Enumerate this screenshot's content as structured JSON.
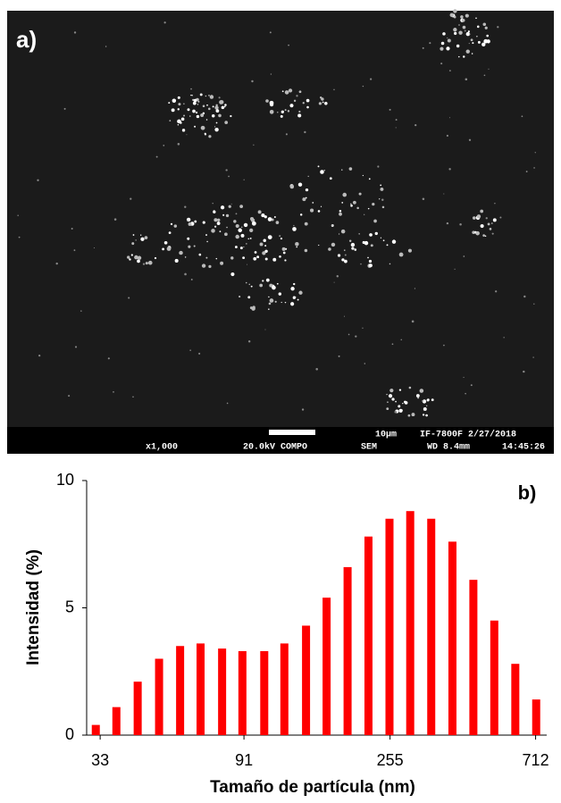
{
  "image": {
    "label": "a)",
    "scale_bar": "10µm",
    "instrument": "IF-7800F 2/27/2018",
    "magnification": "x1,000",
    "voltage": "20.0kV COMPO",
    "mode": "SEM",
    "working_distance": "WD 8.4mm",
    "time": "14:45:26"
  },
  "chart_data": {
    "type": "bar",
    "label": "b)",
    "xlabel": "Tamaño de partícula (nm)",
    "ylabel": "Intensidad (%)",
    "x": [
      32,
      37,
      43,
      50,
      58,
      67,
      78,
      90,
      105,
      121,
      141,
      163,
      189,
      219,
      254,
      294,
      341,
      396,
      459,
      532,
      617,
      715
    ],
    "values": [
      0.4,
      1.1,
      2.1,
      3.0,
      3.5,
      3.6,
      3.4,
      3.3,
      3.3,
      3.6,
      4.3,
      5.4,
      6.6,
      7.8,
      8.5,
      8.8,
      8.5,
      7.6,
      6.1,
      4.5,
      2.8,
      1.4
    ],
    "color": "#ff0000",
    "xscale": "log",
    "xlim": [
      30,
      770
    ],
    "xticks": [
      33,
      91,
      255,
      712
    ],
    "ylim": [
      0,
      10
    ],
    "yticks": [
      0,
      5,
      10
    ]
  }
}
